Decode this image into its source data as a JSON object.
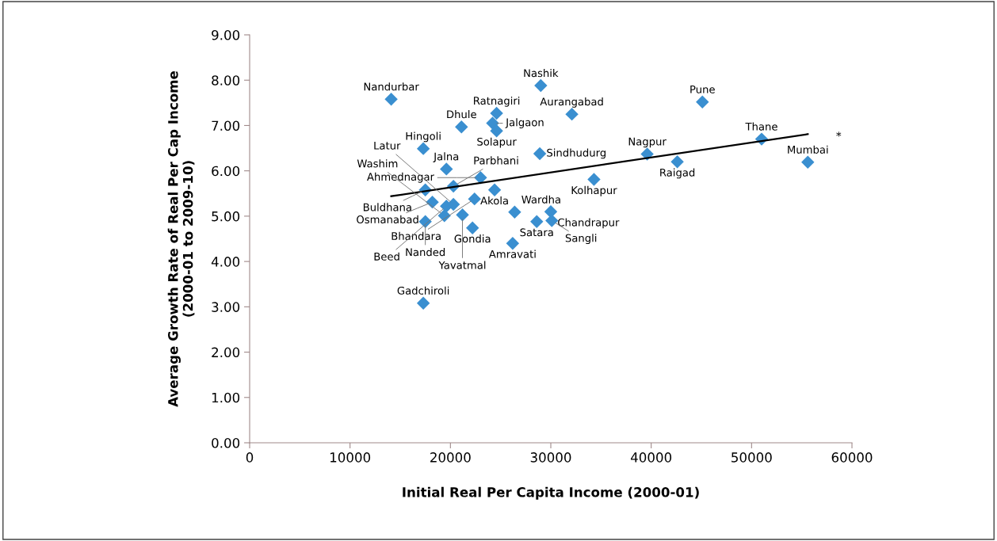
{
  "chart_data": {
    "type": "scatter",
    "xlabel": "Initial Real Per Capita Income (2000-01)",
    "ylabel": "Average Growth Rate of Real Per Cap Income\n(2000-01 to 2009-10)",
    "xlim": [
      0,
      60000
    ],
    "xticks": [
      0,
      10000,
      20000,
      30000,
      40000,
      50000,
      60000
    ],
    "ylim": [
      0,
      9
    ],
    "yticks": [
      {
        "value": 0,
        "label": "0.00"
      },
      {
        "value": 1,
        "label": "1.00"
      },
      {
        "value": 2,
        "label": "2.00"
      },
      {
        "value": 3,
        "label": "3.00"
      },
      {
        "value": 4,
        "label": "4.00"
      },
      {
        "value": 5,
        "label": "5.00"
      },
      {
        "value": 6,
        "label": "6.00"
      },
      {
        "value": 7,
        "label": "7.00"
      },
      {
        "value": 8,
        "label": "8.00"
      },
      {
        "value": 9,
        "label": "9.00"
      }
    ],
    "grid": false,
    "legend": false,
    "marker": "diamond",
    "series": [
      {
        "color": "#3a8fd0",
        "x": [
          14100,
          29000,
          32100,
          45100,
          51000,
          55600,
          42600,
          39600,
          34300,
          17300,
          21100,
          24600,
          24200,
          24600,
          28900,
          23000,
          19600,
          17500,
          20300,
          24400,
          22400,
          18200,
          26400,
          30000,
          28600,
          30100,
          26200,
          22200,
          17500,
          21200,
          19400,
          19600,
          20300,
          17300
        ],
        "values": [
          7.58,
          7.88,
          7.25,
          7.52,
          6.7,
          6.19,
          6.2,
          6.37,
          5.81,
          6.49,
          6.97,
          7.27,
          7.05,
          6.88,
          6.38,
          5.85,
          6.04,
          5.58,
          5.66,
          5.58,
          5.38,
          5.31,
          5.09,
          5.1,
          4.88,
          4.9,
          4.4,
          4.74,
          4.88,
          5.03,
          5.01,
          5.22,
          5.26,
          3.08
        ]
      },
      {
        "type": "line",
        "color": "#000000",
        "marker": "none",
        "line_style": "solid",
        "x": [
          14100,
          55600
        ],
        "values": [
          5.44,
          6.81
        ]
      }
    ],
    "annotations": [
      {
        "text": "Nandurbar",
        "x": 14100,
        "y": 7.58
      },
      {
        "text": "Nashik",
        "x": 29000,
        "y": 7.88
      },
      {
        "text": "Aurangabad",
        "x": 32100,
        "y": 7.25
      },
      {
        "text": "Pune",
        "x": 45100,
        "y": 7.52
      },
      {
        "text": "Thane",
        "x": 51000,
        "y": 6.7
      },
      {
        "text": "Mumbai",
        "x": 55600,
        "y": 6.19
      },
      {
        "text": "Raigad",
        "x": 42600,
        "y": 6.2
      },
      {
        "text": "Nagpur",
        "x": 39600,
        "y": 6.37
      },
      {
        "text": "Kolhapur",
        "x": 34300,
        "y": 5.81
      },
      {
        "text": "Hingoli",
        "x": 17300,
        "y": 6.49
      },
      {
        "text": "Dhule",
        "x": 21100,
        "y": 6.97
      },
      {
        "text": "Ratnagiri",
        "x": 24600,
        "y": 7.27
      },
      {
        "text": "Jalgaon",
        "x": 24200,
        "y": 7.05
      },
      {
        "text": "Solapur",
        "x": 24600,
        "y": 6.88
      },
      {
        "text": "Sindhudurg",
        "x": 28900,
        "y": 6.38
      },
      {
        "text": "Ahmednagar",
        "x": 23000,
        "y": 5.85
      },
      {
        "text": "Jalna",
        "x": 19600,
        "y": 6.04
      },
      {
        "text": "Buldhana",
        "x": 17500,
        "y": 5.58
      },
      {
        "text": "Parbhani",
        "x": 20300,
        "y": 5.66
      },
      {
        "text": "Akola",
        "x": 24400,
        "y": 5.58
      },
      {
        "text": "Bhandara",
        "x": 22400,
        "y": 5.38
      },
      {
        "text": "Osmanabad",
        "x": 18200,
        "y": 5.31
      },
      {
        "text": "Wardha",
        "x": 26400,
        "y": 5.09
      },
      {
        "text": "Chandrapur",
        "x": 30000,
        "y": 5.1
      },
      {
        "text": "Satara",
        "x": 28600,
        "y": 4.88
      },
      {
        "text": "Sangli",
        "x": 30100,
        "y": 4.9
      },
      {
        "text": "Amravati",
        "x": 26200,
        "y": 4.4
      },
      {
        "text": "Gondia",
        "x": 22200,
        "y": 4.74
      },
      {
        "text": "Nanded",
        "x": 17500,
        "y": 4.88
      },
      {
        "text": "Yavatmal",
        "x": 21200,
        "y": 5.03
      },
      {
        "text": "Washim",
        "x": 19400,
        "y": 5.01
      },
      {
        "text": "Beed",
        "x": 19600,
        "y": 5.22
      },
      {
        "text": "Latur",
        "x": 20300,
        "y": 5.26
      },
      {
        "text": "Gadchiroli",
        "x": 17300,
        "y": 3.08
      },
      "*"
    ]
  }
}
